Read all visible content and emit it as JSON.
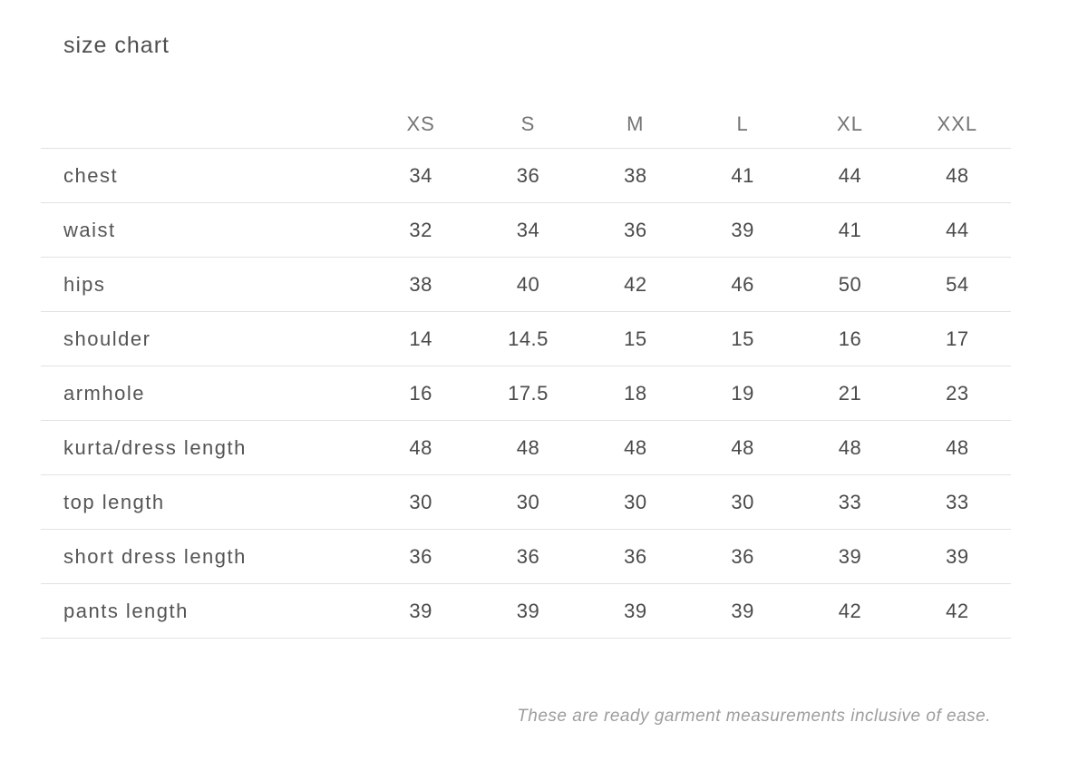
{
  "page": {
    "title": "size chart",
    "footnote": "These are ready garment measurements inclusive of ease."
  },
  "colors": {
    "background": "#ffffff",
    "title_text": "#4f4f4f",
    "header_text": "#757575",
    "cell_text": "#4a4a4a",
    "divider_line": "#e2e2e2",
    "footnote_text": "#9d9d9d"
  },
  "chart_data": {
    "type": "table",
    "title": "size chart",
    "columns": [
      "",
      "XS",
      "S",
      "M",
      "L",
      "XL",
      "XXL"
    ],
    "rows": [
      {
        "label": "chest",
        "values": [
          "34",
          "36",
          "38",
          "41",
          "44",
          "48"
        ]
      },
      {
        "label": "waist",
        "values": [
          "32",
          "34",
          "36",
          "39",
          "41",
          "44"
        ]
      },
      {
        "label": "hips",
        "values": [
          "38",
          "40",
          "42",
          "46",
          "50",
          "54"
        ]
      },
      {
        "label": "shoulder",
        "values": [
          "14",
          "14.5",
          "15",
          "15",
          "16",
          "17"
        ]
      },
      {
        "label": "armhole",
        "values": [
          "16",
          "17.5",
          "18",
          "19",
          "21",
          "23"
        ]
      },
      {
        "label": "kurta/dress length",
        "values": [
          "48",
          "48",
          "48",
          "48",
          "48",
          "48"
        ]
      },
      {
        "label": "top length",
        "values": [
          "30",
          "30",
          "30",
          "30",
          "33",
          "33"
        ]
      },
      {
        "label": "short dress length",
        "values": [
          "36",
          "36",
          "36",
          "36",
          "39",
          "39"
        ]
      },
      {
        "label": "pants length",
        "values": [
          "39",
          "39",
          "39",
          "39",
          "42",
          "42"
        ]
      }
    ],
    "note": "These are ready garment measurements inclusive of ease.",
    "layout_hints": {
      "grid": "horizontal row dividers only",
      "note_position": "bottom-right, italic"
    }
  }
}
